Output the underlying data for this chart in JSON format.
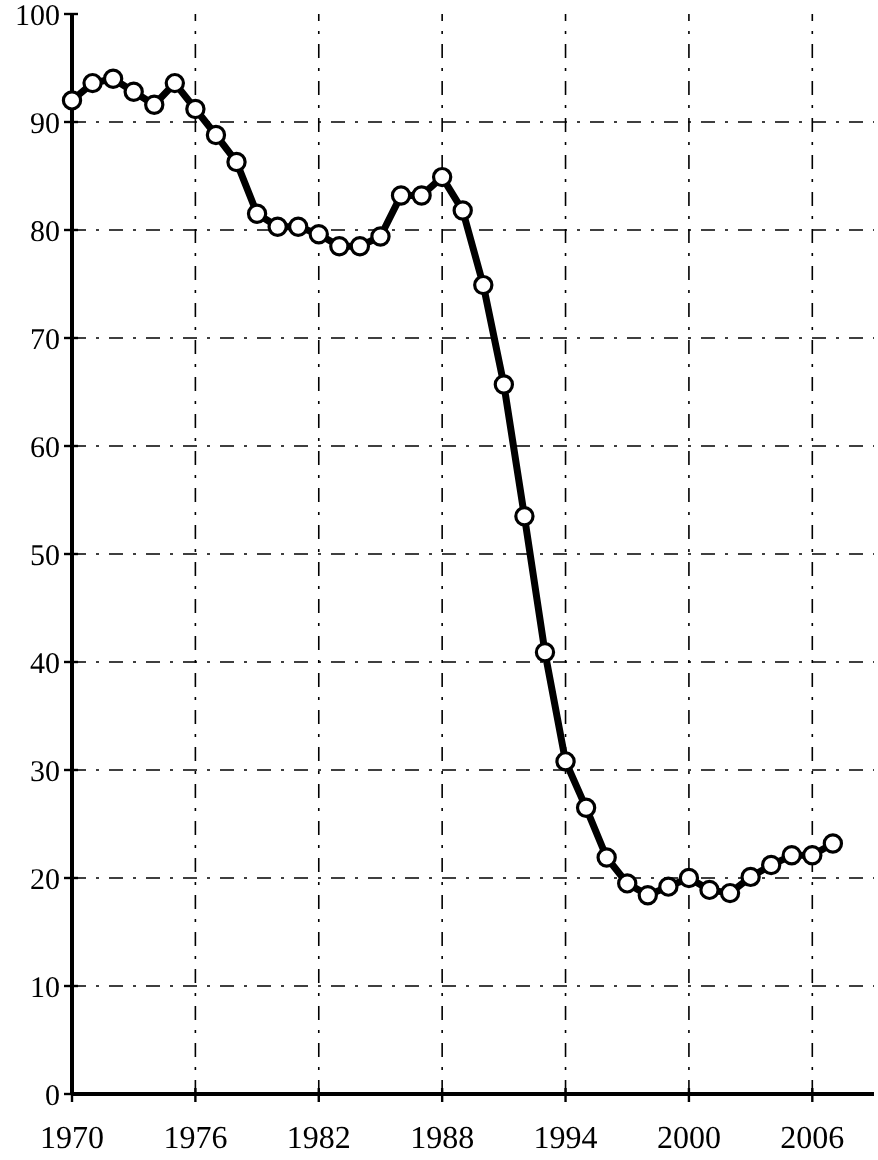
{
  "chart_data": {
    "type": "line",
    "x": [
      1970,
      1971,
      1972,
      1973,
      1974,
      1975,
      1976,
      1977,
      1978,
      1979,
      1980,
      1981,
      1982,
      1983,
      1984,
      1985,
      1986,
      1987,
      1988,
      1989,
      1990,
      1991,
      1992,
      1993,
      1994,
      1995,
      1996,
      1997,
      1998,
      1999,
      2000,
      2001,
      2002,
      2003,
      2004,
      2005,
      2006,
      2007
    ],
    "series": [
      {
        "color": "#000000",
        "values": [
          92,
          93.6,
          94,
          92.8,
          91.6,
          93.6,
          91.2,
          88.8,
          86.3,
          81.5,
          80.3,
          80.3,
          79.6,
          78.5,
          78.5,
          79.4,
          83.2,
          83.2,
          84.9,
          81.8,
          74.9,
          65.7,
          53.5,
          40.9,
          30.8,
          26.5,
          21.9,
          19.5,
          18.4,
          19.2,
          20,
          18.9,
          18.6,
          20.1,
          21.2,
          22.1,
          22.1,
          23.2
        ]
      }
    ],
    "xlim": [
      1970,
      2009
    ],
    "xticks": [
      1970,
      1976,
      1982,
      1988,
      1994,
      2000,
      2006
    ],
    "ylim": [
      0,
      100
    ],
    "yticks": [
      0,
      10,
      20,
      30,
      40,
      50,
      60,
      70,
      80,
      90,
      100
    ],
    "grid": true,
    "marker": "circle",
    "line_style": "solid"
  }
}
